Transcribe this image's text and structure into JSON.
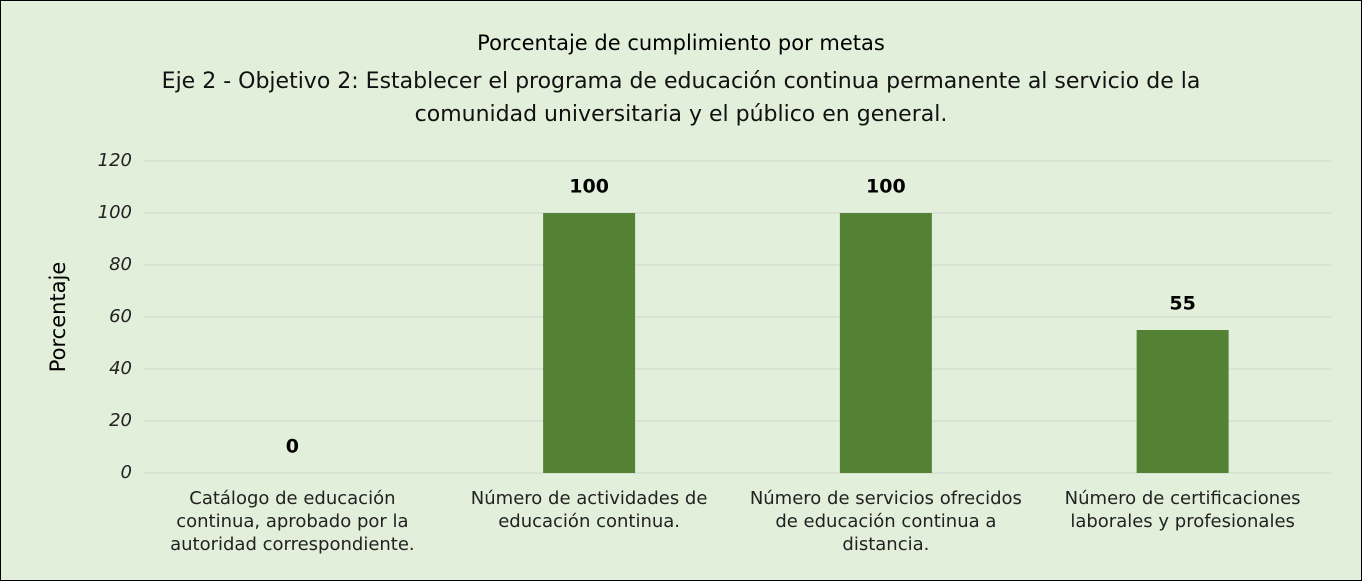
{
  "chart_data": {
    "type": "bar",
    "title": "Porcentaje de cumplimiento por metas",
    "subtitle": "Eje 2 - Objetivo 2: Establecer el programa de educación continua permanente al servicio de la comunidad universitaria y el público en general.",
    "y_label": "Porcentaje",
    "categories": [
      "Catálogo de educación continua, aprobado por la autoridad correspondiente.",
      "Número de actividades de educación continua.",
      "Número de servicios ofrecidos de educación continua a distancia.",
      "Número de certificaciones laborales y profesionales"
    ],
    "values": [
      0,
      100,
      100,
      55
    ],
    "color": "#548235",
    "ylim": [
      0,
      120
    ],
    "yticks": [
      0,
      20,
      40,
      60,
      80,
      100,
      120
    ],
    "grid": true
  }
}
